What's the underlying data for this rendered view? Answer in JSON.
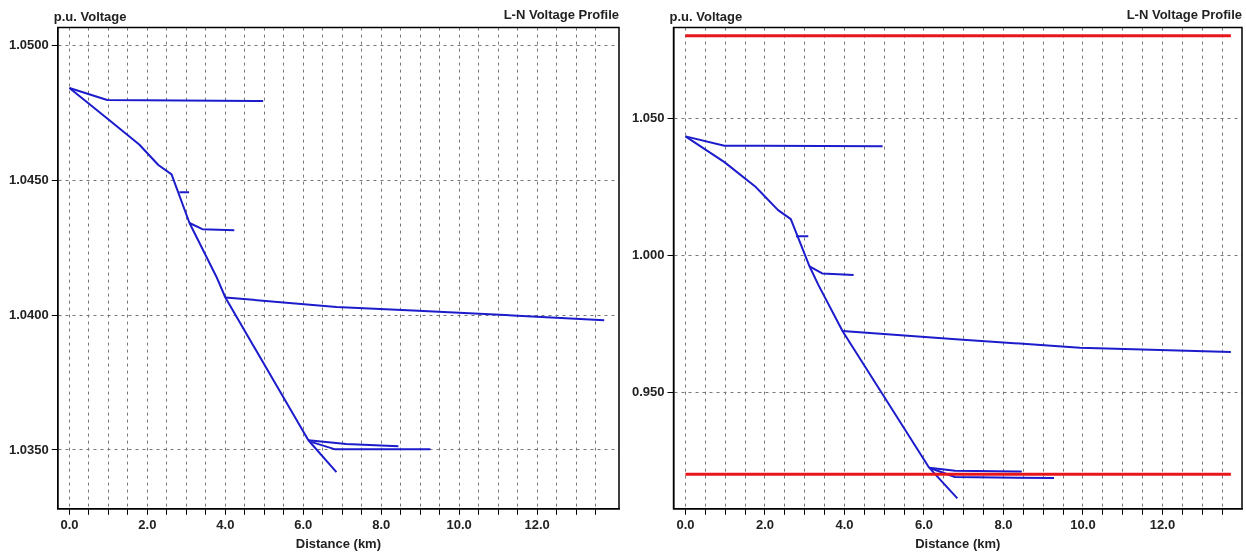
{
  "chart_data": [
    {
      "type": "line",
      "title": "L-N Voltage Profile",
      "ylabel": "p.u. Voltage",
      "xlabel": "Distance (km)",
      "xlim": [
        -0.3,
        14.1
      ],
      "ylim": [
        1.03282,
        1.05065
      ],
      "xticks": [
        {
          "value": 0,
          "label": "0.0"
        },
        {
          "value": 0.5,
          "label": null
        },
        {
          "value": 1,
          "label": null
        },
        {
          "value": 1.5,
          "label": null
        },
        {
          "value": 2,
          "label": "2.0"
        },
        {
          "value": 2.5,
          "label": null
        },
        {
          "value": 3,
          "label": null
        },
        {
          "value": 3.5,
          "label": null
        },
        {
          "value": 4,
          "label": "4.0"
        },
        {
          "value": 4.5,
          "label": null
        },
        {
          "value": 5,
          "label": null
        },
        {
          "value": 5.5,
          "label": null
        },
        {
          "value": 6,
          "label": "6.0"
        },
        {
          "value": 6.5,
          "label": null
        },
        {
          "value": 7,
          "label": null
        },
        {
          "value": 7.5,
          "label": null
        },
        {
          "value": 8,
          "label": "8.0"
        },
        {
          "value": 8.5,
          "label": null
        },
        {
          "value": 9,
          "label": null
        },
        {
          "value": 9.5,
          "label": null
        },
        {
          "value": 10,
          "label": "10.0"
        },
        {
          "value": 10.5,
          "label": null
        },
        {
          "value": 11,
          "label": null
        },
        {
          "value": 11.5,
          "label": null
        },
        {
          "value": 12,
          "label": "12.0"
        },
        {
          "value": 12.5,
          "label": null
        },
        {
          "value": 13,
          "label": null
        },
        {
          "value": 13.5,
          "label": null
        }
      ],
      "yticks": [
        {
          "value": 1.035,
          "label": "1.0350"
        },
        {
          "value": 1.04,
          "label": "1.0400"
        },
        {
          "value": 1.045,
          "label": "1.0450"
        },
        {
          "value": 1.05,
          "label": "1.0500"
        }
      ],
      "grid": true,
      "legend": false,
      "marker": "none",
      "line_style": "solid",
      "series": [
        {
          "color": "#1c1ccc",
          "x": [
            0,
            0.97,
            1.79,
            2.28,
            2.62,
            3.08,
            3.77,
            4.0,
            6.13,
            6.85
          ],
          "values": [
            1.04841,
            1.04728,
            1.04632,
            1.04556,
            1.04521,
            1.04341,
            1.04142,
            1.04065,
            1.03536,
            1.03418
          ]
        },
        {
          "color": "#1c1ccc",
          "x": [
            0,
            0.97,
            4.97
          ],
          "values": [
            1.04841,
            1.04797,
            1.04793
          ]
        },
        {
          "color": "#1c1ccc",
          "x": [
            2.82,
            3.07
          ],
          "values": [
            1.04455,
            1.04455
          ]
        },
        {
          "color": "#1c1ccc",
          "x": [
            3.08,
            3.41,
            4.23
          ],
          "values": [
            1.04341,
            1.04318,
            1.04314
          ]
        },
        {
          "color": "#1c1ccc",
          "x": [
            4.0,
            6.85,
            8.95,
            13.72
          ],
          "values": [
            1.04065,
            1.0403,
            1.04016,
            1.03981
          ]
        },
        {
          "color": "#1c1ccc",
          "x": [
            6.13,
            7.1,
            8.44
          ],
          "values": [
            1.03536,
            1.03522,
            1.03514
          ]
        },
        {
          "color": "#1c1ccc",
          "x": [
            6.2,
            6.8,
            9.26
          ],
          "values": [
            1.0353,
            1.03503,
            1.03503
          ]
        }
      ]
    },
    {
      "type": "line",
      "title": "L-N Voltage Profile",
      "ylabel": "p.u. Voltage",
      "xlabel": "Distance (km)",
      "xlim": [
        -0.3,
        14.0
      ],
      "ylim": [
        0.9074,
        1.083
      ],
      "xticks": [
        {
          "value": 0,
          "label": "0.0"
        },
        {
          "value": 0.5,
          "label": null
        },
        {
          "value": 1,
          "label": null
        },
        {
          "value": 1.5,
          "label": null
        },
        {
          "value": 2,
          "label": "2.0"
        },
        {
          "value": 2.5,
          "label": null
        },
        {
          "value": 3,
          "label": null
        },
        {
          "value": 3.5,
          "label": null
        },
        {
          "value": 4,
          "label": "4.0"
        },
        {
          "value": 4.5,
          "label": null
        },
        {
          "value": 5,
          "label": null
        },
        {
          "value": 5.5,
          "label": null
        },
        {
          "value": 6,
          "label": "6.0"
        },
        {
          "value": 6.5,
          "label": null
        },
        {
          "value": 7,
          "label": null
        },
        {
          "value": 7.5,
          "label": null
        },
        {
          "value": 8,
          "label": "8.0"
        },
        {
          "value": 8.5,
          "label": null
        },
        {
          "value": 9,
          "label": null
        },
        {
          "value": 9.5,
          "label": null
        },
        {
          "value": 10,
          "label": "10.0"
        },
        {
          "value": 10.5,
          "label": null
        },
        {
          "value": 11,
          "label": null
        },
        {
          "value": 11.5,
          "label": null
        },
        {
          "value": 12,
          "label": "12.0"
        },
        {
          "value": 12.5,
          "label": null
        },
        {
          "value": 13,
          "label": null
        },
        {
          "value": 13.5,
          "label": null
        }
      ],
      "yticks": [
        {
          "value": 0.95,
          "label": "0.950"
        },
        {
          "value": 1.0,
          "label": "1.000"
        },
        {
          "value": 1.05,
          "label": "1.050"
        }
      ],
      "grid": true,
      "legend": false,
      "marker": "none",
      "line_style": "solid",
      "series": [
        {
          "color": "#e8161b",
          "x": [
            0,
            13.72
          ],
          "values": [
            1.08,
            1.08
          ]
        },
        {
          "color": "#e8161b",
          "x": [
            0,
            13.72
          ],
          "values": [
            0.92,
            0.92
          ]
        },
        {
          "color": "#1c1ccc",
          "x": [
            0,
            0.98,
            1.77,
            2.33,
            2.65,
            3.12,
            3.34,
            3.95,
            6.13,
            6.84
          ],
          "values": [
            1.0433,
            1.0339,
            1.0248,
            1.0164,
            1.0131,
            0.9959,
            0.9892,
            0.9723,
            0.9224,
            0.9112
          ]
        },
        {
          "color": "#1c1ccc",
          "x": [
            0,
            0.98,
            4.96
          ],
          "values": [
            1.0433,
            1.0399,
            1.0397
          ]
        },
        {
          "color": "#1c1ccc",
          "x": [
            2.78,
            3.09
          ],
          "values": [
            1.0069,
            1.0069
          ]
        },
        {
          "color": "#1c1ccc",
          "x": [
            3.12,
            3.44,
            4.23
          ],
          "values": [
            0.9959,
            0.9933,
            0.9927
          ]
        },
        {
          "color": "#1c1ccc",
          "x": [
            3.95,
            6.89,
            9.92,
            13.72
          ],
          "values": [
            0.9723,
            0.9692,
            0.9662,
            0.9646
          ]
        },
        {
          "color": "#1c1ccc",
          "x": [
            6.13,
            6.78,
            8.46
          ],
          "values": [
            0.9224,
            0.9213,
            0.921
          ]
        },
        {
          "color": "#1c1ccc",
          "x": [
            6.2,
            6.78,
            9.27
          ],
          "values": [
            0.922,
            0.919,
            0.9186
          ]
        }
      ]
    }
  ]
}
